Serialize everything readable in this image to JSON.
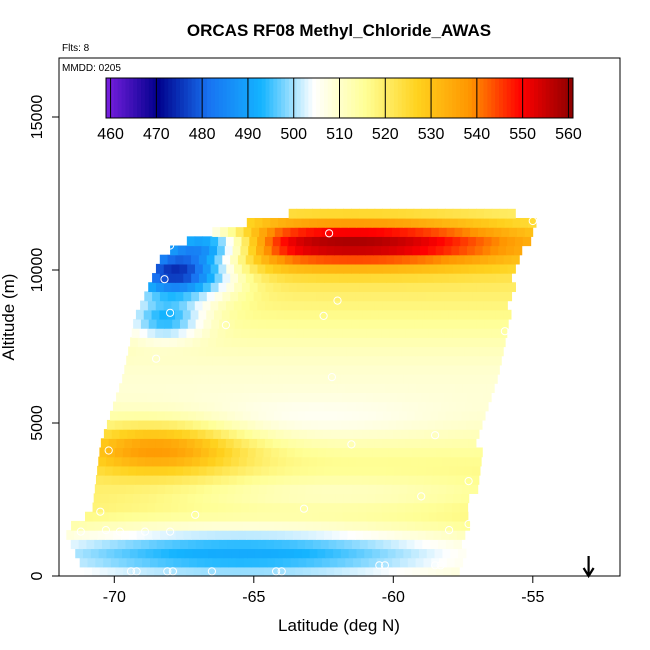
{
  "chart_data": {
    "type": "heatmap",
    "title": "ORCAS RF08 Methyl_Chloride_AWAS",
    "annotations": {
      "flights": "Flts: 8",
      "date": "MMDD: 0205"
    },
    "xlabel": "Latitude (deg N)",
    "ylabel": "Altitude (m)",
    "xlim": [
      -72,
      -52
    ],
    "ylim": [
      0,
      16800
    ],
    "x_ticks": [
      -70,
      -65,
      -60,
      -55
    ],
    "x_tick_labels": [
      "-70",
      "-65",
      "-60",
      "-55"
    ],
    "y_ticks": [
      0,
      5000,
      10000,
      15000
    ],
    "y_tick_labels": [
      "0",
      "5000",
      "10000",
      "15000"
    ],
    "colorbar": {
      "min": 459,
      "max": 561,
      "ticks": [
        460,
        470,
        480,
        490,
        500,
        510,
        520,
        530,
        540,
        550,
        560
      ],
      "tick_labels": [
        "460",
        "470",
        "480",
        "490",
        "500",
        "510",
        "520",
        "530",
        "540",
        "550",
        "560"
      ],
      "stops": [
        "#7a1fe0",
        "#00008c",
        "#1874f2",
        "#14b4ff",
        "#ffffff",
        "#ffff96",
        "#ffd21e",
        "#ff9600",
        "#ff0000",
        "#8c0000"
      ]
    },
    "region": {
      "left_edge": [
        [
          0,
          -71.0
        ],
        [
          1500,
          -71.8
        ],
        [
          2100,
          -70.8
        ],
        [
          4300,
          -70.5
        ],
        [
          6500,
          -69.7
        ],
        [
          7800,
          -69.4
        ],
        [
          8400,
          -69.3
        ],
        [
          9200,
          -68.9
        ],
        [
          10500,
          -68.3
        ],
        [
          11000,
          -67.3
        ],
        [
          11400,
          -66.0
        ],
        [
          12000,
          -63.0
        ]
      ],
      "right_edge": [
        [
          0,
          -57.7
        ],
        [
          1800,
          -57.5
        ],
        [
          3300,
          -57.1
        ],
        [
          5200,
          -57.0
        ],
        [
          6200,
          -56.6
        ],
        [
          8300,
          -56.0
        ],
        [
          10000,
          -55.8
        ],
        [
          11600,
          -54.9
        ],
        [
          12000,
          -56.5
        ]
      ]
    },
    "field": {
      "background_value": 515,
      "features": [
        {
          "name": "upper-left low",
          "x": -67.8,
          "y": 10000,
          "value": 466,
          "sx": 1.4,
          "sy": 650
        },
        {
          "name": "upper-left low 2",
          "x": -66.5,
          "y": 10900,
          "value": 478,
          "sx": 1.2,
          "sy": 380
        },
        {
          "name": "mid-left low",
          "x": -68.2,
          "y": 8400,
          "value": 494,
          "sx": 1.0,
          "sy": 450
        },
        {
          "name": "upper high",
          "x": -61.5,
          "y": 10900,
          "value": 553,
          "sx": 4.5,
          "sy": 550
        },
        {
          "name": "left mid high",
          "x": -68.5,
          "y": 4200,
          "value": 538,
          "sx": 2.2,
          "sy": 600
        },
        {
          "name": "lower low band",
          "x": -65.5,
          "y": 800,
          "value": 488,
          "sx": 6.5,
          "sy": 650
        },
        {
          "name": "pale band",
          "x": -63.0,
          "y": 5100,
          "value": 510,
          "sx": 3.5,
          "sy": 500
        },
        {
          "name": "pale low band",
          "x": -62.0,
          "y": 2700,
          "value": 506,
          "sx": 4.5,
          "sy": 450
        }
      ]
    },
    "samples": [
      [
        -71.2,
        1450
      ],
      [
        -70.3,
        1500
      ],
      [
        -69.8,
        1450
      ],
      [
        -68.9,
        1450
      ],
      [
        -68.0,
        1450
      ],
      [
        -69.4,
        150
      ],
      [
        -69.2,
        150
      ],
      [
        -68.1,
        150
      ],
      [
        -67.9,
        150
      ],
      [
        -66.5,
        150
      ],
      [
        -64.2,
        150
      ],
      [
        -64.0,
        150
      ],
      [
        -60.5,
        350
      ],
      [
        -60.3,
        350
      ],
      [
        -58.5,
        350
      ],
      [
        -58.3,
        350
      ],
      [
        -71.0,
        4200
      ],
      [
        -70.2,
        4100
      ],
      [
        -70.5,
        2100
      ],
      [
        -67.1,
        2000
      ],
      [
        -63.2,
        2200
      ],
      [
        -68.5,
        7100
      ],
      [
        -68.0,
        8600
      ],
      [
        -66.0,
        8200
      ],
      [
        -62.2,
        6500
      ],
      [
        -62.5,
        8500
      ],
      [
        -62.0,
        9000
      ],
      [
        -68.2,
        9700
      ],
      [
        -68.0,
        10800
      ],
      [
        -62.3,
        11200
      ],
      [
        -55.0,
        11600
      ],
      [
        -56.0,
        8000
      ],
      [
        -59.0,
        2600
      ],
      [
        -58.5,
        4600
      ],
      [
        -57.3,
        3100
      ],
      [
        -58.0,
        1500
      ],
      [
        -57.3,
        1700
      ],
      [
        -61.5,
        4300
      ],
      [
        -57.8,
        12200
      ]
    ],
    "arrow": {
      "x": -53,
      "direction": "down"
    }
  }
}
